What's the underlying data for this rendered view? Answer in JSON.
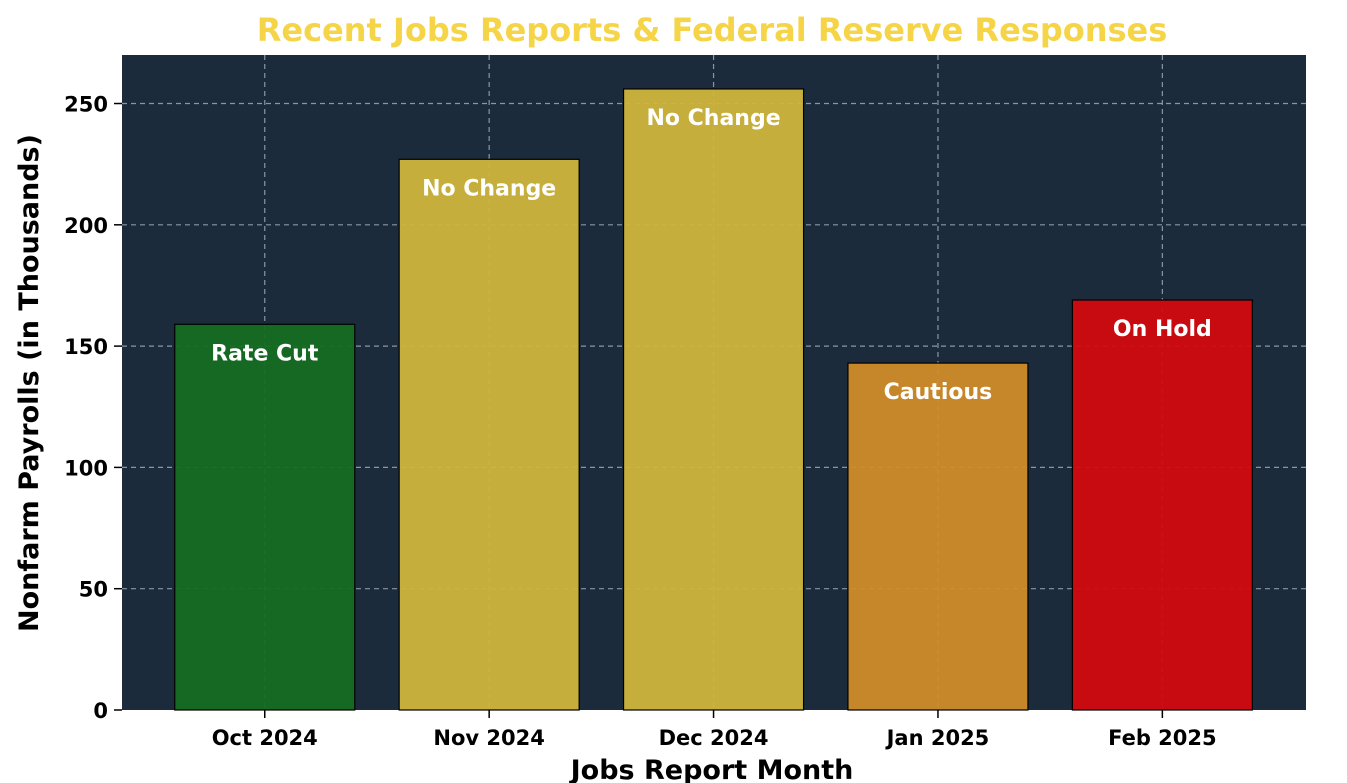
{
  "chart_data": {
    "type": "bar",
    "title": "Recent Jobs Reports & Federal Reserve Responses",
    "xlabel": "Jobs Report Month",
    "ylabel": "Nonfarm Payrolls (in Thousands)",
    "categories": [
      "Oct 2024",
      "Nov 2024",
      "Dec 2024",
      "Jan 2025",
      "Feb 2025"
    ],
    "values": [
      159,
      227,
      256,
      143,
      169
    ],
    "responses": [
      "Rate Cut",
      "No Change",
      "No Change",
      "Cautious",
      "On Hold"
    ],
    "bar_colors": [
      "#156d22",
      "#d0b53c",
      "#d0b53c",
      "#d08c2a",
      "#d20a0e"
    ],
    "ylim": [
      0,
      270
    ],
    "yticks": [
      0,
      50,
      100,
      150,
      200,
      250
    ],
    "grid": true,
    "colors": {
      "plot_background": "#1c2b3c",
      "title": "#f5d547",
      "grid": "#8a96a3"
    }
  }
}
